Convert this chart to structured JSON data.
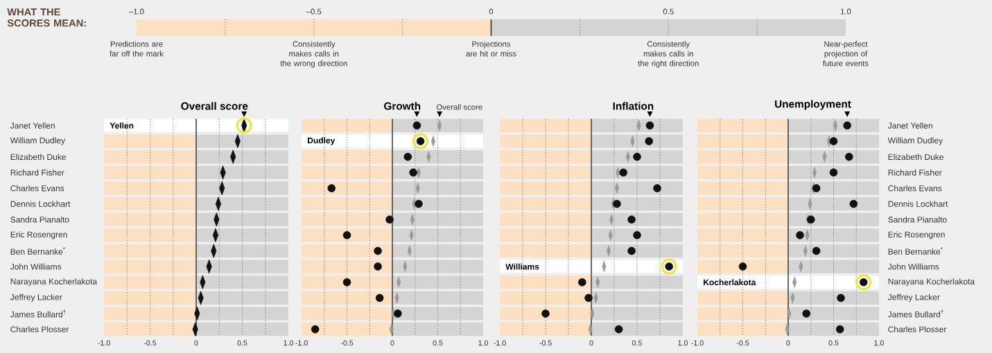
{
  "chart_data": [
    {
      "type": "bar",
      "orientation": "horizontal",
      "stacked": true,
      "title": "WHAT THE SCORES MEAN:",
      "tick_labels": "x",
      "categories": [
        null
      ],
      "series": [
        {
          "color": "#fde0c2",
          "values": [
            -1
          ]
        },
        {
          "color": "#d4d4d4",
          "values": [
            1
          ]
        }
      ],
      "xlim": [
        -1,
        1
      ],
      "xticks": [
        {
          "value": -1,
          "label": "–1.0"
        },
        {
          "value": -0.75,
          "label": null
        },
        {
          "value": -0.5,
          "label": "–0.5"
        },
        {
          "value": -0.25,
          "label": null
        },
        {
          "value": 0,
          "label": "0"
        },
        {
          "value": 0.25,
          "label": null
        },
        {
          "value": 0.5,
          "label": "0.5"
        },
        {
          "value": 0.75,
          "label": null
        },
        {
          "value": 1,
          "label": "1.0"
        }
      ],
      "grid": "x",
      "ref_lines": [
        {
          "axis": "x",
          "value": 0,
          "color": "#555555"
        }
      ],
      "annotations": [
        "Predictions are far off the mark",
        "Consistently makes calls in the wrong direction",
        "Projections are hit or miss",
        "Consistently makes calls in the right direction",
        "Near-perfect projection of future events"
      ]
    },
    {
      "type": "scatter",
      "orientation": "horizontal",
      "title": "Overall score",
      "categories": [
        "Janet Yellen",
        "William Dudley",
        "Elizabeth Duke",
        "Richard Fisher",
        "Charles Evans",
        "Dennis Lockhart",
        "Sandra Pianalto",
        "Eric Rosengren",
        "Ben Bernanke$^{*}$",
        "John Williams",
        "Narayana Kocherlakota",
        "Jeffrey Lacker",
        "James Bullard$^{†}$",
        "Charles Plosser"
      ],
      "series": [
        {
          "color": "#111111",
          "marker": "diamond",
          "values": [
            0.52,
            0.45,
            0.4,
            0.29,
            0.28,
            0.24,
            0.22,
            0.21,
            0.19,
            0.14,
            0.07,
            0.05,
            0.01,
            -0.01
          ]
        }
      ],
      "xlim": [
        -1,
        1
      ],
      "xticks": [
        {
          "value": -1,
          "label": "-1.0"
        },
        {
          "value": -0.75,
          "label": null
        },
        {
          "value": -0.5,
          "label": "-0.5"
        },
        {
          "value": -0.25,
          "label": null
        },
        {
          "value": 0,
          "label": "0"
        },
        {
          "value": 0.25,
          "label": null
        },
        {
          "value": 0.5,
          "label": "0.5"
        },
        {
          "value": 0.75,
          "label": null
        },
        {
          "value": 1,
          "label": "1.0"
        }
      ],
      "grid": "x",
      "bands": [
        {
          "axis": "x",
          "from": -1,
          "to": 0,
          "color": "#fde0c2"
        },
        {
          "axis": "x",
          "from": 0,
          "to": 1,
          "color": "#d4d4d4"
        }
      ],
      "ref_lines": [
        {
          "axis": "x",
          "value": 0,
          "color": "#555555"
        }
      ],
      "annotations": [
        "Yellen"
      ]
    },
    {
      "type": "scatter",
      "orientation": "horizontal",
      "title": "Growth",
      "tick_labels": "x",
      "categories": [
        null,
        null,
        null,
        null,
        null,
        null,
        null,
        null,
        null,
        null,
        null,
        null,
        null,
        null
      ],
      "series": [
        {
          "color": "#111111",
          "marker": "circle",
          "values": [
            0.27,
            0.31,
            0.17,
            0.23,
            -0.67,
            0.29,
            -0.03,
            -0.5,
            -0.16,
            -0.16,
            -0.5,
            -0.14,
            0.06,
            -0.85
          ]
        },
        {
          "name": "Overall score",
          "color": "#9a9a9a",
          "marker": "diamond",
          "values": [
            0.52,
            0.45,
            0.4,
            0.29,
            0.28,
            0.24,
            0.22,
            0.21,
            0.19,
            0.14,
            0.07,
            0.05,
            0.01,
            -0.01
          ]
        }
      ],
      "xlim": [
        -1,
        1
      ],
      "xticks": [
        {
          "value": -1,
          "label": "-1.0"
        },
        {
          "value": -0.75,
          "label": null
        },
        {
          "value": -0.5,
          "label": "-0.5"
        },
        {
          "value": -0.25,
          "label": null
        },
        {
          "value": 0,
          "label": "0"
        },
        {
          "value": 0.25,
          "label": null
        },
        {
          "value": 0.5,
          "label": "0.5"
        },
        {
          "value": 0.75,
          "label": null
        },
        {
          "value": 1,
          "label": "1.0"
        }
      ],
      "grid": "x",
      "bands": [
        {
          "axis": "x",
          "from": -1,
          "to": 0,
          "color": "#fde0c2"
        },
        {
          "axis": "x",
          "from": 0,
          "to": 1,
          "color": "#d4d4d4"
        }
      ],
      "ref_lines": [
        {
          "axis": "x",
          "value": 0,
          "color": "#555555"
        }
      ],
      "annotations": [
        "Dudley"
      ]
    },
    {
      "type": "scatter",
      "orientation": "horizontal",
      "title": "Inflation",
      "tick_labels": "x",
      "categories": [
        null,
        null,
        null,
        null,
        null,
        null,
        null,
        null,
        null,
        null,
        null,
        null,
        null,
        null
      ],
      "series": [
        {
          "color": "#111111",
          "marker": "circle",
          "values": [
            0.64,
            0.63,
            0.5,
            0.35,
            0.72,
            0.28,
            0.44,
            0.5,
            0.44,
            0.85,
            -0.1,
            -0.03,
            -0.5,
            0.3
          ]
        },
        {
          "color": "#9a9a9a",
          "marker": "diamond",
          "values": [
            0.52,
            0.45,
            0.4,
            0.29,
            0.28,
            0.24,
            0.22,
            0.21,
            0.19,
            0.14,
            0.07,
            0.05,
            0.01,
            -0.01
          ]
        }
      ],
      "xlim": [
        -1,
        1
      ],
      "xticks": [
        {
          "value": -1,
          "label": "-1.0"
        },
        {
          "value": -0.75,
          "label": null
        },
        {
          "value": -0.5,
          "label": "-0.5"
        },
        {
          "value": -0.25,
          "label": null
        },
        {
          "value": 0,
          "label": "0"
        },
        {
          "value": 0.25,
          "label": null
        },
        {
          "value": 0.5,
          "label": "0.5"
        },
        {
          "value": 0.75,
          "label": null
        },
        {
          "value": 1,
          "label": "1.0"
        }
      ],
      "grid": "x",
      "bands": [
        {
          "axis": "x",
          "from": -1,
          "to": 0,
          "color": "#fde0c2"
        },
        {
          "axis": "x",
          "from": 0,
          "to": 1,
          "color": "#d4d4d4"
        }
      ],
      "ref_lines": [
        {
          "axis": "x",
          "value": 0,
          "color": "#555555"
        }
      ],
      "annotations": [
        "Williams"
      ]
    },
    {
      "type": "scatter",
      "orientation": "horizontal",
      "title": "Unemployment",
      "categories": [
        "Janet Yellen",
        "William Dudley",
        "Elizabeth Duke",
        "Richard Fisher",
        "Charles Evans",
        "Dennis Lockhart",
        "Sandra Pianalto",
        "Eric Rosengren",
        "Ben Bernanke$^{*}$",
        "John Williams",
        "Narayana Kocherlakota",
        "Jeffrey Lacker",
        "James Bullard$^{†}$",
        "Charles Plosser"
      ],
      "series": [
        {
          "color": "#111111",
          "marker": "circle",
          "values": [
            0.65,
            0.5,
            0.67,
            0.5,
            0.31,
            0.72,
            0.25,
            0.13,
            0.31,
            -0.5,
            0.83,
            0.58,
            0.2,
            0.57
          ]
        },
        {
          "color": "#9a9a9a",
          "marker": "diamond",
          "values": [
            0.52,
            0.45,
            0.4,
            0.29,
            0.28,
            0.24,
            0.22,
            0.21,
            0.19,
            0.14,
            0.07,
            0.05,
            0.01,
            -0.01
          ]
        }
      ],
      "xlim": [
        -1,
        1
      ],
      "xticks": [
        {
          "value": -1,
          "label": "-1.0"
        },
        {
          "value": -0.75,
          "label": null
        },
        {
          "value": -0.5,
          "label": "-0.5"
        },
        {
          "value": -0.25,
          "label": null
        },
        {
          "value": 0,
          "label": "0"
        },
        {
          "value": 0.25,
          "label": null
        },
        {
          "value": 0.5,
          "label": "0.5"
        },
        {
          "value": 0.75,
          "label": null
        },
        {
          "value": 1,
          "label": "1.0"
        }
      ],
      "grid": "x",
      "bands": [
        {
          "axis": "x",
          "from": -1,
          "to": 0,
          "color": "#fde0c2"
        },
        {
          "axis": "x",
          "from": 0,
          "to": 1,
          "color": "#d4d4d4"
        }
      ],
      "ref_lines": [
        {
          "axis": "x",
          "value": 0,
          "color": "#555555"
        }
      ],
      "annotations": [
        "Kocherlakota"
      ]
    }
  ]
}
